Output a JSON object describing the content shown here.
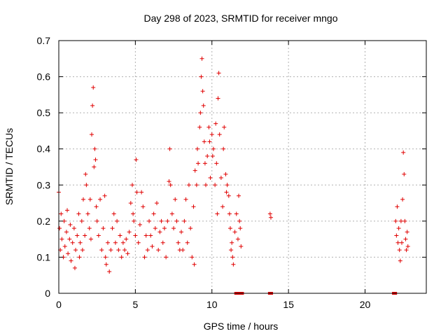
{
  "chart_data": {
    "type": "scatter",
    "title": "Day 298 of 2023, SRMTID for receiver mngo",
    "xlabel": "GPS time / hours",
    "ylabel": "SRMTID / TECUs",
    "xlim": [
      0,
      24
    ],
    "ylim": [
      0,
      0.7
    ],
    "x_ticks": [
      0,
      5,
      10,
      15,
      20
    ],
    "y_ticks": [
      0,
      0.1,
      0.2,
      0.3,
      0.4,
      0.5,
      0.6,
      0.7
    ],
    "x_tick_labels": [
      "0",
      "5",
      "10",
      "15",
      "20"
    ],
    "y_tick_labels": [
      "0",
      "0.1",
      "0.2",
      "0.3",
      "0.4",
      "0.5",
      "0.6",
      "0.7"
    ],
    "grid": true,
    "marker": "plus",
    "color": "#e00000",
    "series": [
      {
        "points": [
          [
            0.0,
            0.28
          ],
          [
            0.05,
            0.18
          ],
          [
            0.1,
            0.12
          ],
          [
            0.15,
            0.22
          ],
          [
            0.2,
            0.15
          ],
          [
            0.3,
            0.1
          ],
          [
            0.35,
            0.2
          ],
          [
            0.4,
            0.13
          ],
          [
            0.5,
            0.17
          ],
          [
            0.55,
            0.23
          ],
          [
            0.6,
            0.11
          ],
          [
            0.7,
            0.15
          ],
          [
            0.75,
            0.19
          ],
          [
            0.8,
            0.09
          ],
          [
            0.9,
            0.14
          ],
          [
            1.0,
            0.18
          ],
          [
            1.05,
            0.07
          ],
          [
            1.1,
            0.12
          ],
          [
            1.2,
            0.16
          ],
          [
            1.3,
            0.22
          ],
          [
            1.35,
            0.1
          ],
          [
            1.4,
            0.14
          ],
          [
            1.5,
            0.2
          ],
          [
            1.55,
            0.12
          ],
          [
            1.6,
            0.26
          ],
          [
            1.7,
            0.16
          ],
          [
            1.75,
            0.33
          ],
          [
            1.8,
            0.3
          ],
          [
            1.9,
            0.22
          ],
          [
            2.0,
            0.18
          ],
          [
            2.05,
            0.26
          ],
          [
            2.1,
            0.15
          ],
          [
            2.15,
            0.44
          ],
          [
            2.2,
            0.52
          ],
          [
            2.25,
            0.57
          ],
          [
            2.3,
            0.35
          ],
          [
            2.35,
            0.4
          ],
          [
            2.4,
            0.37
          ],
          [
            2.45,
            0.24
          ],
          [
            2.5,
            0.2
          ],
          [
            2.6,
            0.16
          ],
          [
            2.7,
            0.26
          ],
          [
            2.8,
            0.12
          ],
          [
            2.9,
            0.18
          ],
          [
            3.0,
            0.27
          ],
          [
            3.05,
            0.1
          ],
          [
            3.1,
            0.08
          ],
          [
            3.2,
            0.14
          ],
          [
            3.3,
            0.06
          ],
          [
            3.4,
            0.12
          ],
          [
            3.5,
            0.18
          ],
          [
            3.6,
            0.22
          ],
          [
            3.7,
            0.14
          ],
          [
            3.8,
            0.2
          ],
          [
            3.9,
            0.12
          ],
          [
            4.0,
            0.16
          ],
          [
            4.1,
            0.1
          ],
          [
            4.2,
            0.14
          ],
          [
            4.3,
            0.12
          ],
          [
            4.4,
            0.15
          ],
          [
            4.5,
            0.11
          ],
          [
            4.6,
            0.17
          ],
          [
            4.7,
            0.25
          ],
          [
            4.8,
            0.3
          ],
          [
            4.85,
            0.22
          ],
          [
            4.9,
            0.2
          ],
          [
            5.0,
            0.16
          ],
          [
            5.05,
            0.37
          ],
          [
            5.1,
            0.28
          ],
          [
            5.2,
            0.14
          ],
          [
            5.3,
            0.19
          ],
          [
            5.4,
            0.28
          ],
          [
            5.5,
            0.24
          ],
          [
            5.6,
            0.1
          ],
          [
            5.7,
            0.16
          ],
          [
            5.8,
            0.12
          ],
          [
            5.9,
            0.2
          ],
          [
            6.0,
            0.16
          ],
          [
            6.1,
            0.13
          ],
          [
            6.2,
            0.22
          ],
          [
            6.3,
            0.18
          ],
          [
            6.4,
            0.25
          ],
          [
            6.5,
            0.12
          ],
          [
            6.6,
            0.17
          ],
          [
            6.7,
            0.2
          ],
          [
            6.8,
            0.14
          ],
          [
            6.9,
            0.18
          ],
          [
            7.0,
            0.1
          ],
          [
            7.1,
            0.2
          ],
          [
            7.2,
            0.31
          ],
          [
            7.25,
            0.4
          ],
          [
            7.3,
            0.3
          ],
          [
            7.4,
            0.22
          ],
          [
            7.5,
            0.18
          ],
          [
            7.6,
            0.26
          ],
          [
            7.7,
            0.2
          ],
          [
            7.8,
            0.14
          ],
          [
            7.9,
            0.12
          ],
          [
            8.0,
            0.17
          ],
          [
            8.1,
            0.12
          ],
          [
            8.2,
            0.2
          ],
          [
            8.3,
            0.26
          ],
          [
            8.4,
            0.14
          ],
          [
            8.5,
            0.3
          ],
          [
            8.6,
            0.18
          ],
          [
            8.7,
            0.1
          ],
          [
            8.8,
            0.24
          ],
          [
            8.85,
            0.08
          ],
          [
            8.9,
            0.34
          ],
          [
            9.0,
            0.3
          ],
          [
            9.05,
            0.4
          ],
          [
            9.1,
            0.36
          ],
          [
            9.2,
            0.46
          ],
          [
            9.25,
            0.5
          ],
          [
            9.3,
            0.6
          ],
          [
            9.35,
            0.65
          ],
          [
            9.4,
            0.56
          ],
          [
            9.45,
            0.52
          ],
          [
            9.5,
            0.42
          ],
          [
            9.55,
            0.36
          ],
          [
            9.6,
            0.3
          ],
          [
            9.7,
            0.38
          ],
          [
            9.8,
            0.46
          ],
          [
            9.85,
            0.42
          ],
          [
            9.9,
            0.32
          ],
          [
            10.0,
            0.44
          ],
          [
            10.05,
            0.38
          ],
          [
            10.1,
            0.4
          ],
          [
            10.2,
            0.3
          ],
          [
            10.25,
            0.47
          ],
          [
            10.3,
            0.36
          ],
          [
            10.35,
            0.22
          ],
          [
            10.4,
            0.54
          ],
          [
            10.45,
            0.61
          ],
          [
            10.5,
            0.44
          ],
          [
            10.6,
            0.32
          ],
          [
            10.7,
            0.24
          ],
          [
            10.75,
            0.4
          ],
          [
            10.8,
            0.46
          ],
          [
            10.9,
            0.33
          ],
          [
            10.95,
            0.28
          ],
          [
            11.0,
            0.3
          ],
          [
            11.1,
            0.27
          ],
          [
            11.15,
            0.22
          ],
          [
            11.2,
            0.18
          ],
          [
            11.25,
            0.12
          ],
          [
            11.3,
            0.14
          ],
          [
            11.35,
            0.1
          ],
          [
            11.4,
            0.08
          ],
          [
            11.5,
            0.17
          ],
          [
            11.6,
            0.22
          ],
          [
            11.7,
            0.15
          ],
          [
            11.75,
            0.27
          ],
          [
            11.8,
            0.2
          ],
          [
            11.85,
            0.18
          ],
          [
            11.9,
            0.13
          ],
          [
            13.8,
            0.22
          ],
          [
            13.85,
            0.21
          ],
          [
            22.0,
            0.2
          ],
          [
            22.05,
            0.16
          ],
          [
            22.1,
            0.24
          ],
          [
            22.15,
            0.14
          ],
          [
            22.2,
            0.18
          ],
          [
            22.25,
            0.12
          ],
          [
            22.3,
            0.09
          ],
          [
            22.35,
            0.2
          ],
          [
            22.4,
            0.14
          ],
          [
            22.45,
            0.26
          ],
          [
            22.5,
            0.39
          ],
          [
            22.55,
            0.33
          ],
          [
            22.6,
            0.2
          ],
          [
            22.65,
            0.15
          ],
          [
            22.7,
            0.12
          ],
          [
            22.75,
            0.17
          ],
          [
            22.8,
            0.13
          ]
        ]
      }
    ],
    "zero_points": [
      11.6,
      11.65,
      11.9,
      11.95,
      13.8,
      13.85,
      21.9,
      21.95
    ]
  }
}
